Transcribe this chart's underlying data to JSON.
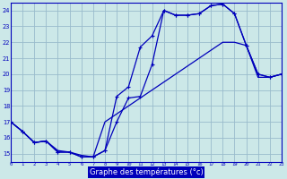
{
  "title": "Graphe des températures (°c)",
  "bg_color": "#cce8e8",
  "grid_color": "#99bbcc",
  "line_color": "#0000bb",
  "label_bg": "#0000bb",
  "xlim": [
    0,
    23
  ],
  "ylim": [
    14.5,
    24.5
  ],
  "xticks": [
    0,
    1,
    2,
    3,
    4,
    5,
    6,
    7,
    8,
    9,
    10,
    11,
    12,
    13,
    14,
    15,
    16,
    17,
    18,
    19,
    20,
    21,
    22,
    23
  ],
  "yticks": [
    15,
    16,
    17,
    18,
    19,
    20,
    21,
    22,
    23,
    24
  ],
  "line1_x": [
    0,
    1,
    2,
    3,
    4,
    5,
    6,
    7,
    8,
    9,
    10,
    11,
    12,
    13,
    14,
    15,
    16,
    17,
    18,
    19,
    20,
    21,
    22,
    23
  ],
  "line1_y": [
    17.0,
    16.4,
    15.7,
    15.8,
    15.1,
    15.1,
    14.8,
    14.8,
    15.2,
    17.0,
    18.5,
    18.6,
    20.6,
    24.0,
    23.7,
    23.7,
    23.8,
    24.3,
    24.4,
    23.8,
    21.8,
    20.0,
    19.8,
    20.0
  ],
  "line2_x": [
    0,
    1,
    2,
    3,
    4,
    5,
    6,
    7,
    8,
    9,
    10,
    11,
    12,
    13,
    14,
    15,
    16,
    17,
    18,
    19,
    20,
    21,
    22,
    23
  ],
  "line2_y": [
    17.0,
    16.4,
    15.7,
    15.8,
    15.1,
    15.1,
    14.8,
    14.8,
    15.2,
    18.6,
    19.2,
    21.7,
    22.4,
    24.0,
    23.7,
    23.7,
    23.8,
    24.3,
    24.4,
    23.8,
    21.8,
    20.0,
    19.8,
    20.0
  ],
  "line3_x": [
    0,
    1,
    2,
    3,
    4,
    5,
    6,
    7,
    8,
    9,
    10,
    11,
    12,
    13,
    14,
    15,
    16,
    17,
    18,
    19,
    20,
    21,
    22,
    23
  ],
  "line3_y": [
    17.0,
    16.4,
    15.7,
    15.8,
    15.2,
    15.1,
    14.9,
    14.8,
    17.0,
    17.5,
    18.0,
    18.5,
    19.0,
    19.5,
    20.0,
    20.5,
    21.0,
    21.5,
    22.0,
    22.0,
    21.8,
    19.8,
    19.8,
    20.0
  ]
}
